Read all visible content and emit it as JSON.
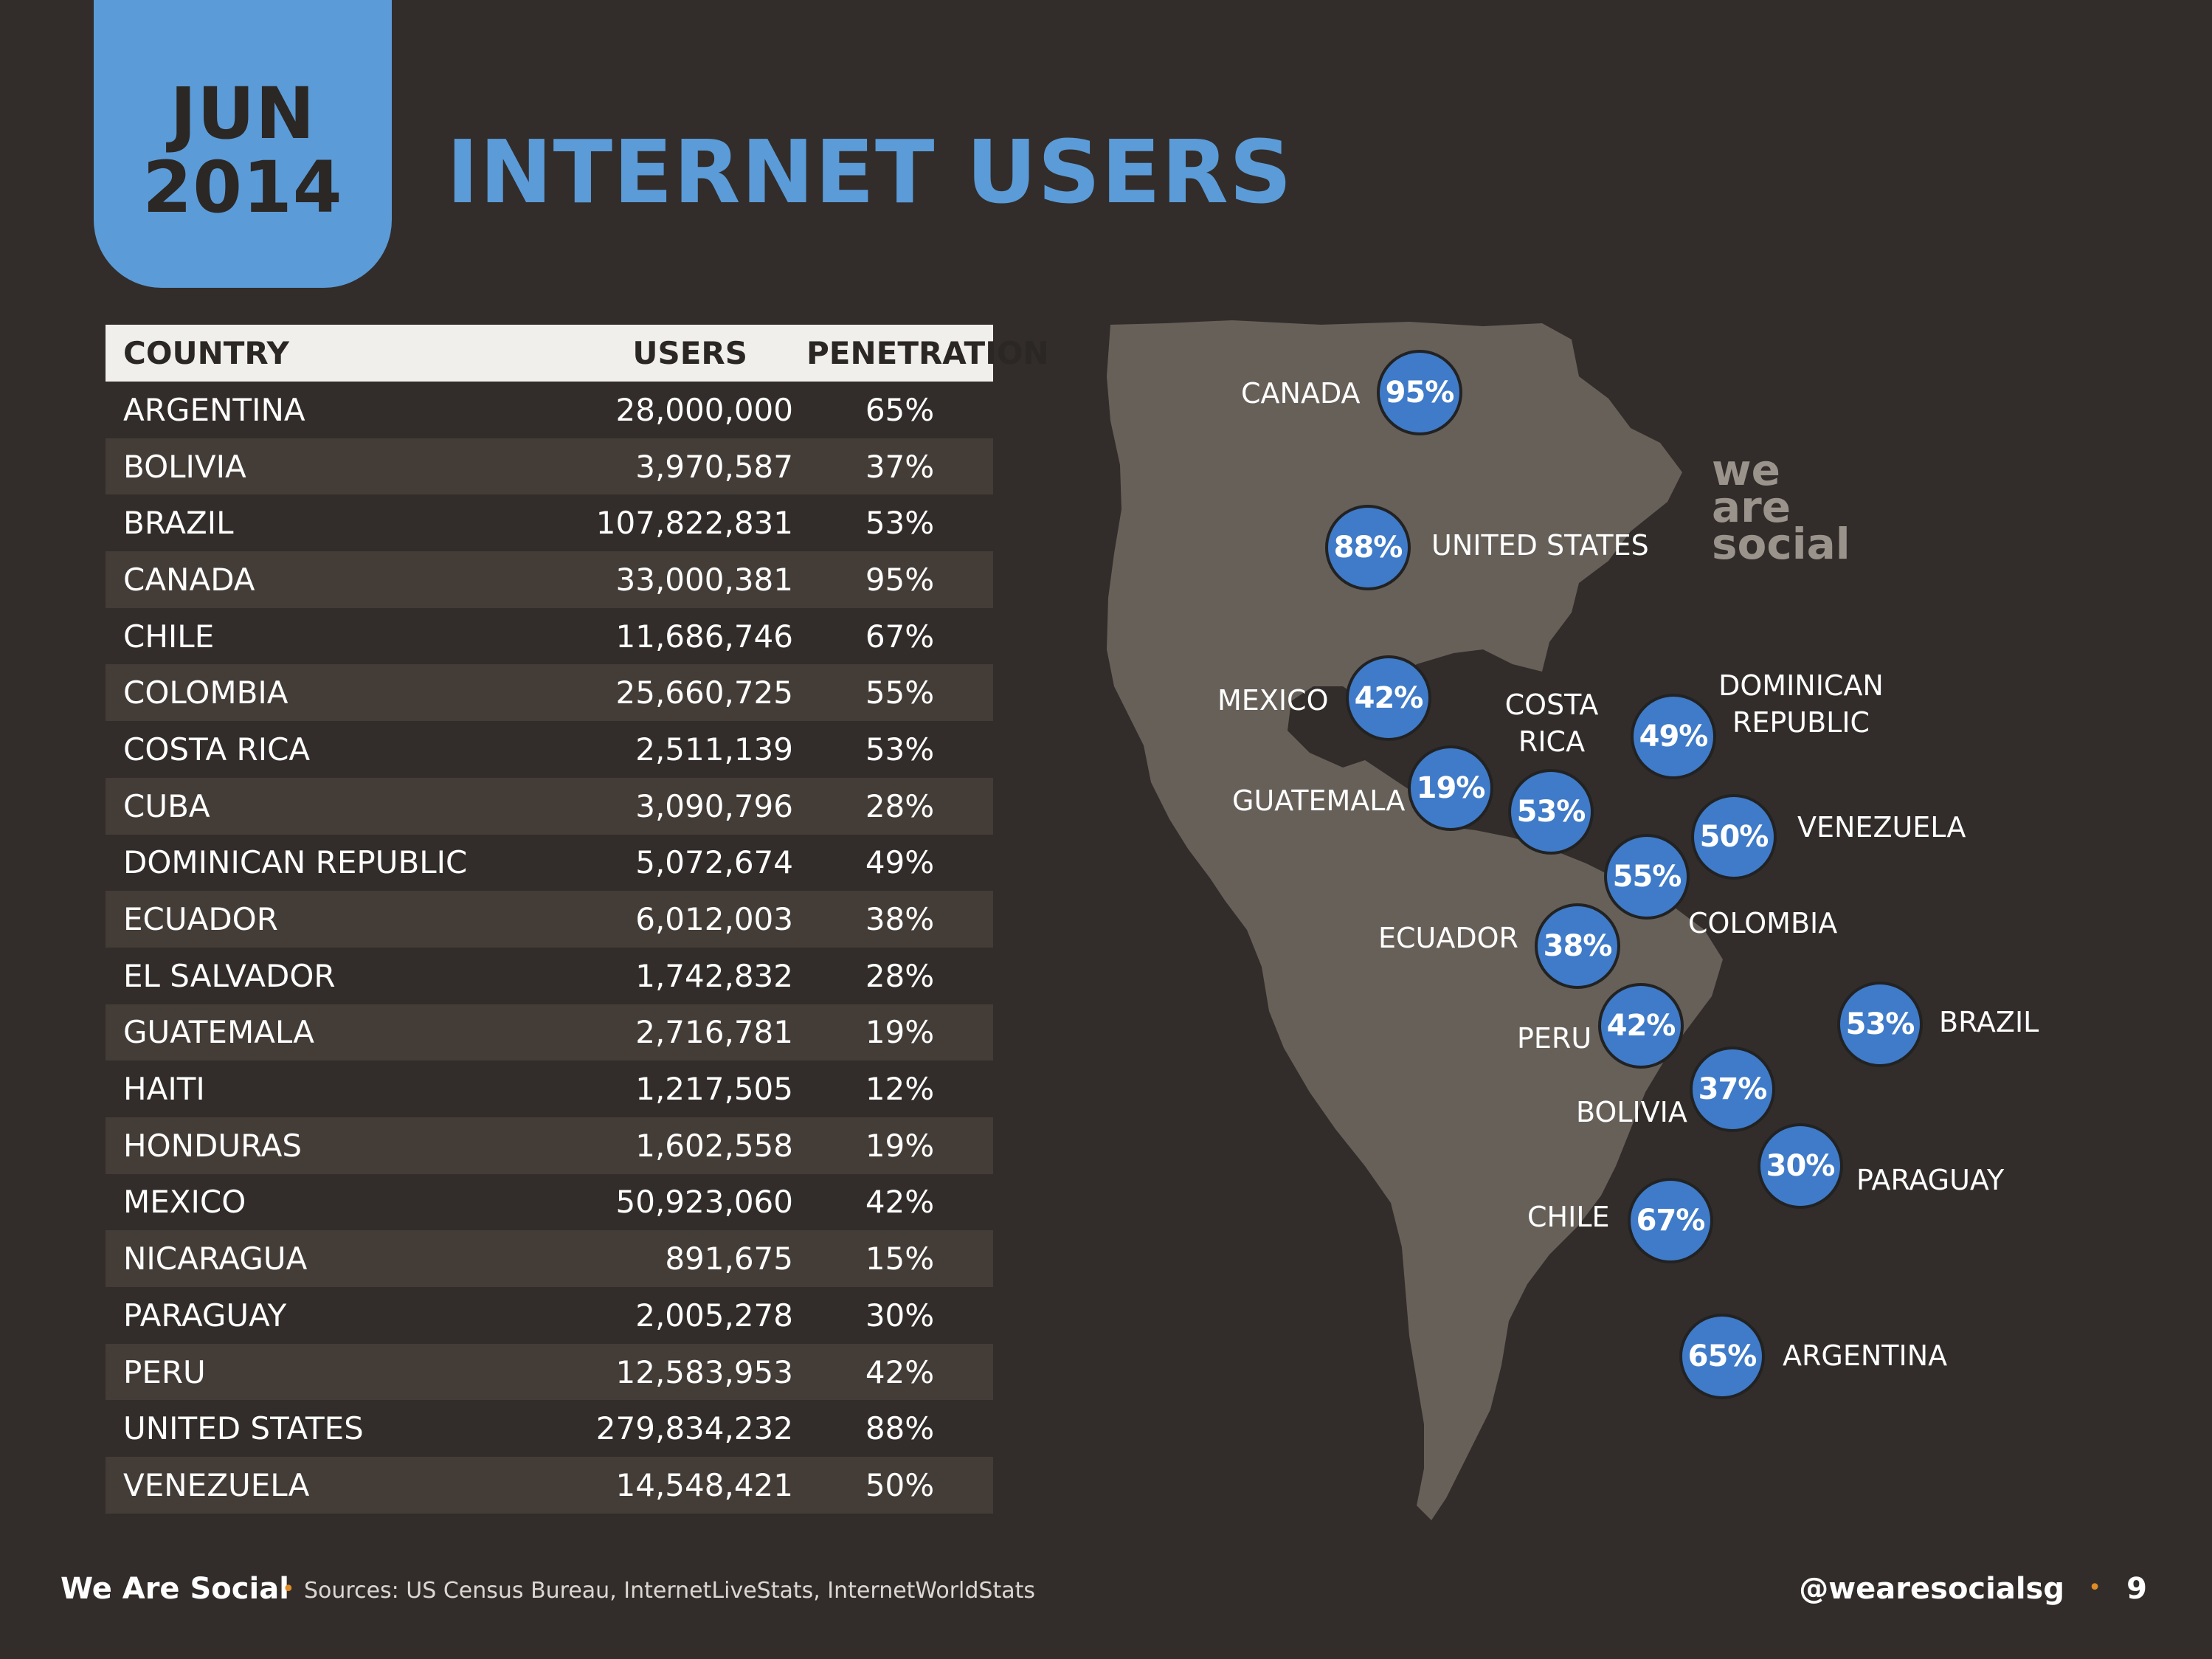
{
  "date": {
    "month": "JUN",
    "year": "2014"
  },
  "title": "INTERNET USERS",
  "table": {
    "headers": {
      "country": "COUNTRY",
      "users": "USERS",
      "penetration": "PENETRATION"
    },
    "rows": [
      {
        "country": "ARGENTINA",
        "users": "28,000,000",
        "penetration": "65%"
      },
      {
        "country": "BOLIVIA",
        "users": "3,970,587",
        "penetration": "37%"
      },
      {
        "country": "BRAZIL",
        "users": "107,822,831",
        "penetration": "53%"
      },
      {
        "country": "CANADA",
        "users": "33,000,381",
        "penetration": "95%"
      },
      {
        "country": "CHILE",
        "users": "11,686,746",
        "penetration": "67%"
      },
      {
        "country": "COLOMBIA",
        "users": "25,660,725",
        "penetration": "55%"
      },
      {
        "country": "COSTA RICA",
        "users": "2,511,139",
        "penetration": "53%"
      },
      {
        "country": "CUBA",
        "users": "3,090,796",
        "penetration": "28%"
      },
      {
        "country": "DOMINICAN REPUBLIC",
        "users": "5,072,674",
        "penetration": "49%"
      },
      {
        "country": "ECUADOR",
        "users": "6,012,003",
        "penetration": "38%"
      },
      {
        "country": "EL SALVADOR",
        "users": "1,742,832",
        "penetration": "28%"
      },
      {
        "country": "GUATEMALA",
        "users": "2,716,781",
        "penetration": "19%"
      },
      {
        "country": "HAITI",
        "users": "1,217,505",
        "penetration": "12%"
      },
      {
        "country": "HONDURAS",
        "users": "1,602,558",
        "penetration": "19%"
      },
      {
        "country": "MEXICO",
        "users": "50,923,060",
        "penetration": "42%"
      },
      {
        "country": "NICARAGUA",
        "users": "891,675",
        "penetration": "15%"
      },
      {
        "country": "PARAGUAY",
        "users": "2,005,278",
        "penetration": "30%"
      },
      {
        "country": "PERU",
        "users": "12,583,953",
        "penetration": "42%"
      },
      {
        "country": "UNITED STATES",
        "users": "279,834,232",
        "penetration": "88%"
      },
      {
        "country": "VENEZUELA",
        "users": "14,548,421",
        "penetration": "50%"
      }
    ]
  },
  "map": {
    "watermark": [
      "we",
      "are",
      "social"
    ],
    "markers": {
      "canada": {
        "label": "CANADA",
        "value": "95%"
      },
      "united_states": {
        "label": "UNITED STATES",
        "value": "88%"
      },
      "mexico": {
        "label": "MEXICO",
        "value": "42%"
      },
      "costa_rica": {
        "label": "COSTA RICA",
        "value": "53%"
      },
      "dominican_republic": {
        "label": "DOMINICAN REPUBLIC",
        "value": "49%"
      },
      "guatemala": {
        "label": "GUATEMALA",
        "value": "19%"
      },
      "venezuela": {
        "label": "VENEZUELA",
        "value": "50%"
      },
      "colombia": {
        "label": "COLOMBIA",
        "value": "55%"
      },
      "ecuador": {
        "label": "ECUADOR",
        "value": "38%"
      },
      "peru": {
        "label": "PERU",
        "value": "42%"
      },
      "brazil": {
        "label": "BRAZIL",
        "value": "53%"
      },
      "bolivia": {
        "label": "BOLIVIA",
        "value": "37%"
      },
      "paraguay": {
        "label": "PARAGUAY",
        "value": "30%"
      },
      "chile": {
        "label": "CHILE",
        "value": "67%"
      },
      "argentina": {
        "label": "ARGENTINA",
        "value": "65%"
      }
    }
  },
  "footer": {
    "brand": "We Are Social",
    "separator": "•",
    "sources": "Sources: US Census Bureau, InternetLiveStats, InternetWorldStats",
    "handle": "@wearesocialsg",
    "page": "9"
  }
}
